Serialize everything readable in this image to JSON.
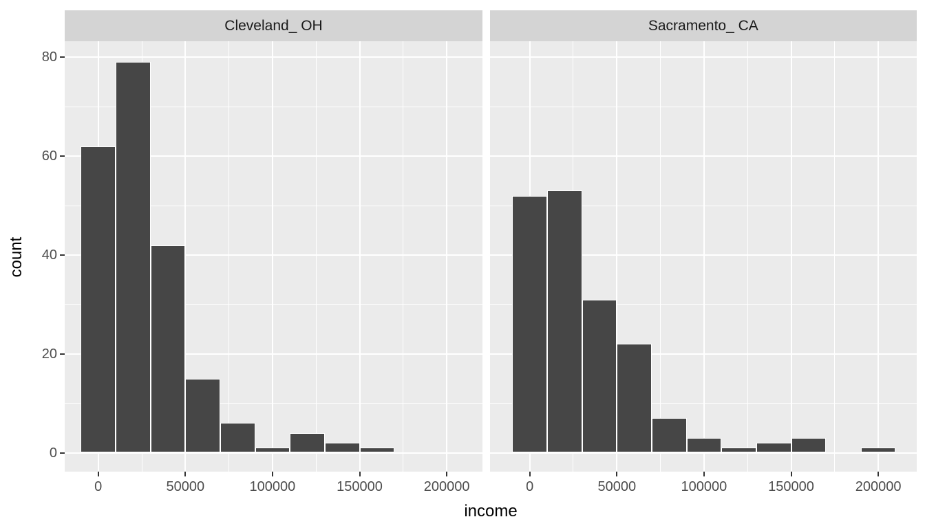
{
  "chart_data": {
    "type": "bar",
    "subtype": "faceted-histogram",
    "xlabel": "income",
    "ylabel": "count",
    "bin_width": 20000,
    "bin_centers": [
      0,
      20000,
      40000,
      60000,
      80000,
      100000,
      120000,
      140000,
      160000,
      180000,
      200000
    ],
    "facets": [
      {
        "label": "Cleveland_ OH",
        "counts": [
          62,
          79,
          42,
          15,
          6,
          1,
          4,
          2,
          1,
          0,
          0
        ]
      },
      {
        "label": "Sacramento_ CA",
        "counts": [
          52,
          53,
          31,
          22,
          7,
          3,
          1,
          2,
          3,
          0,
          1
        ]
      }
    ],
    "x_ticks": [
      {
        "value": 0,
        "label": "0"
      },
      {
        "value": 50000,
        "label": "50000"
      },
      {
        "value": 100000,
        "label": "100000"
      },
      {
        "value": 150000,
        "label": "150000"
      },
      {
        "value": 200000,
        "label": "200000"
      }
    ],
    "y_ticks": [
      {
        "value": 0,
        "label": "0"
      },
      {
        "value": 20,
        "label": "20"
      },
      {
        "value": 40,
        "label": "40"
      },
      {
        "value": 60,
        "label": "60"
      },
      {
        "value": 80,
        "label": "80"
      }
    ],
    "x_minor": [
      25000,
      75000,
      125000,
      175000
    ],
    "y_minor": [
      10,
      30,
      50,
      70
    ],
    "x_range": [
      -21000,
      222000
    ],
    "y_range": [
      -4,
      83
    ],
    "grid": "white major+minor on grey panels",
    "legend_position": "none",
    "colors": {
      "figure_bg": "#FFFFFF",
      "panel_bg": "#EBEBEB",
      "strip_bg": "#D4D4D4",
      "strip_text": "#1A1A1A",
      "bar_fill": "#464646",
      "bar_outline": "#FFFFFF",
      "gridline": "#FFFFFF",
      "axis_text": "#4D4D4D",
      "tick_mark": "#333333"
    }
  }
}
